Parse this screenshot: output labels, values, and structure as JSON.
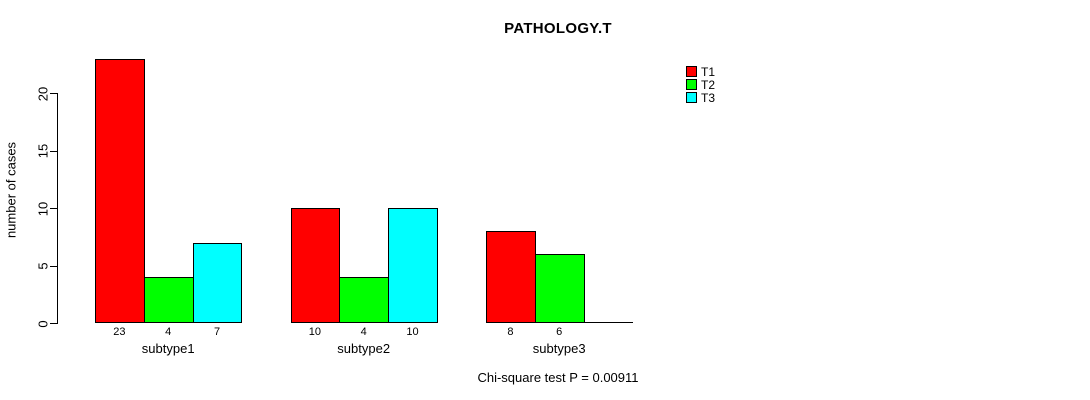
{
  "chart_data": {
    "type": "bar",
    "title": "PATHOLOGY.T",
    "ylabel": "number of cases",
    "xlabel": "",
    "categories": [
      "subtype1",
      "subtype2",
      "subtype3"
    ],
    "series": [
      {
        "name": "T1",
        "color": "#FF0000",
        "values": [
          23,
          10,
          8
        ]
      },
      {
        "name": "T2",
        "color": "#00FF00",
        "values": [
          4,
          4,
          6
        ]
      },
      {
        "name": "T3",
        "color": "#00FFFF",
        "values": [
          7,
          10,
          0
        ]
      }
    ],
    "value_labels": [
      [
        "23",
        "4",
        "7"
      ],
      [
        "10",
        "4",
        "10"
      ],
      [
        "8",
        "6",
        ""
      ]
    ],
    "yticks": [
      0,
      5,
      10,
      15,
      20
    ],
    "ylim": [
      0,
      23
    ],
    "grid": false,
    "legend_position": "top-right",
    "legend_entries": [
      "T1",
      "T2",
      "T3"
    ],
    "annotation": "Chi-square test P = 0.00911"
  },
  "colors": {
    "background": "#FFFFFF",
    "foreground": "#000000",
    "t1": "#FF0000",
    "t2": "#00FF00",
    "t3": "#00FFFF"
  }
}
